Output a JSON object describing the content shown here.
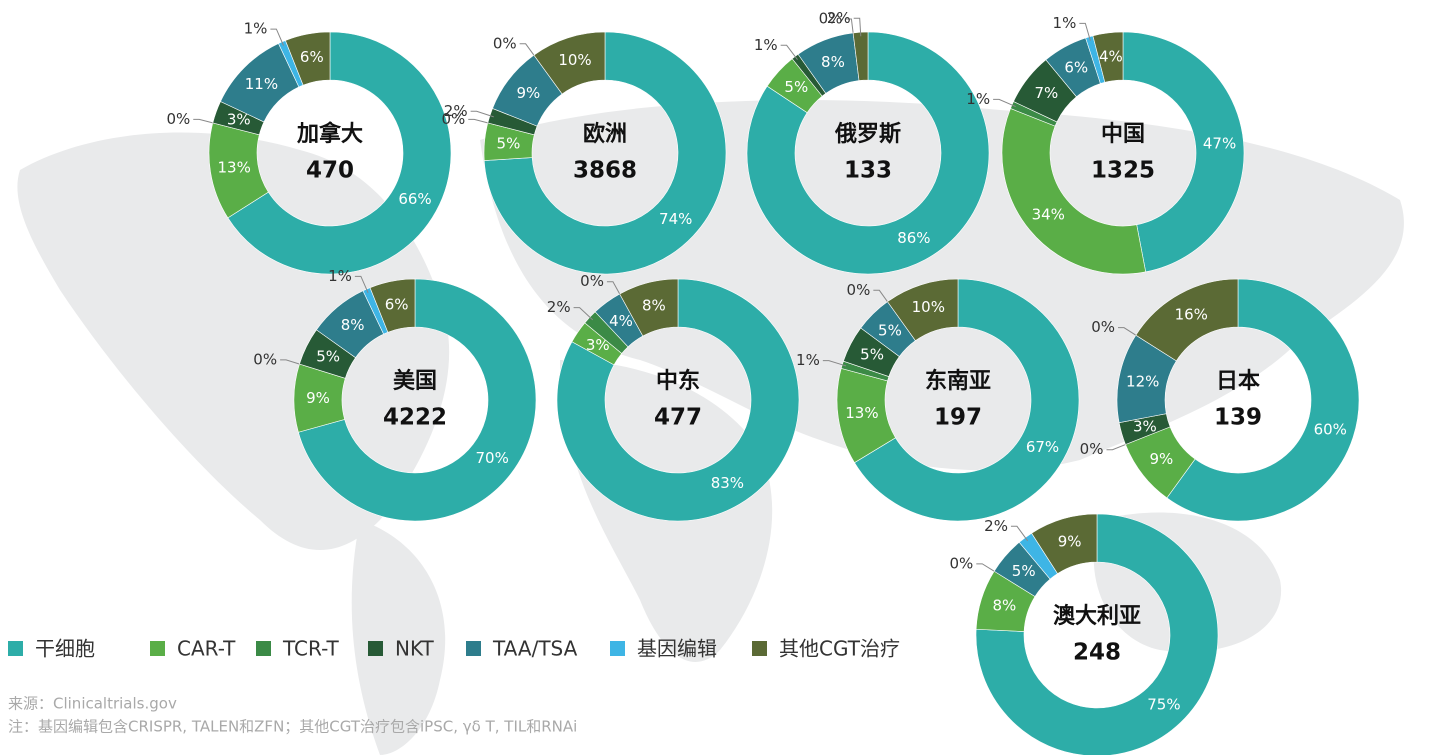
{
  "legend": {
    "items": [
      {
        "name": "干细胞",
        "color": "#2dada8"
      },
      {
        "name": "CAR-T",
        "color": "#5aae47"
      },
      {
        "name": "TCR-T",
        "color": "#3b8a46"
      },
      {
        "name": "NKT",
        "color": "#275a36"
      },
      {
        "name": "TAA/TSA",
        "color": "#2e7d8c"
      },
      {
        "name": "基因编辑",
        "color": "#3eb5e5"
      },
      {
        "name": "其他CGT治疗",
        "color": "#5b6a35"
      }
    ]
  },
  "chart_data": [
    {
      "type": "pie",
      "title": "加拿大",
      "total": 470,
      "values": [
        66,
        13,
        0,
        3,
        11,
        1,
        6
      ],
      "value_labels": [
        "66%",
        "13%",
        "0%",
        "3%",
        "11%",
        "1%",
        "6%"
      ]
    },
    {
      "type": "pie",
      "title": "欧洲",
      "total": 3868,
      "values": [
        74,
        5,
        0,
        2,
        9,
        0,
        10
      ],
      "value_labels": [
        "74%",
        "5%",
        "0%",
        "2%",
        "9%",
        "0%",
        "10%"
      ]
    },
    {
      "type": "pie",
      "title": "俄罗斯",
      "total": 133,
      "values": [
        86,
        5,
        0,
        1,
        8,
        0,
        2
      ],
      "value_labels": [
        "86%",
        "5%",
        null,
        "1%",
        "8%",
        "0%",
        "2%"
      ]
    },
    {
      "type": "pie",
      "title": "中国",
      "total": 1325,
      "values": [
        47,
        34,
        1,
        7,
        6,
        1,
        4
      ],
      "value_labels": [
        "47%",
        "34%",
        "1%",
        "7%",
        "6%",
        "1%",
        "4%"
      ]
    },
    {
      "type": "pie",
      "title": "美国",
      "total": 4222,
      "values": [
        70,
        9,
        0,
        5,
        8,
        1,
        6
      ],
      "value_labels": [
        "70%",
        "9%",
        "0%",
        "5%",
        "8%",
        "1%",
        "6%"
      ]
    },
    {
      "type": "pie",
      "title": "中东",
      "total": 477,
      "values": [
        83,
        3,
        2,
        0,
        4,
        0,
        8
      ],
      "value_labels": [
        "83%",
        "3%",
        "2%",
        null,
        "4%",
        "0%",
        "8%"
      ]
    },
    {
      "type": "pie",
      "title": "东南亚",
      "total": 197,
      "values": [
        67,
        13,
        1,
        5,
        5,
        0,
        10
      ],
      "value_labels": [
        "67%",
        "13%",
        "1%",
        "5%",
        "5%",
        "0%",
        "10%"
      ]
    },
    {
      "type": "pie",
      "title": "日本",
      "total": 139,
      "values": [
        60,
        9,
        0,
        3,
        12,
        0,
        16
      ],
      "value_labels": [
        "60%",
        "9%",
        "0%",
        "3%",
        "12%",
        "0%",
        "16%"
      ]
    },
    {
      "type": "pie",
      "title": "澳大利亚",
      "total": 248,
      "values": [
        75,
        8,
        0,
        0,
        5,
        2,
        9
      ],
      "value_labels": [
        "75%",
        "8%",
        "0%",
        null,
        "5%",
        "2%",
        "9%"
      ]
    }
  ],
  "footnotes": [
    "来源：Clinicaltrials.gov",
    "注：基因编辑包含CRISPR, TALEN和ZFN；其他CGT治疗包含iPSC, γδ T, TIL和RNAi"
  ]
}
